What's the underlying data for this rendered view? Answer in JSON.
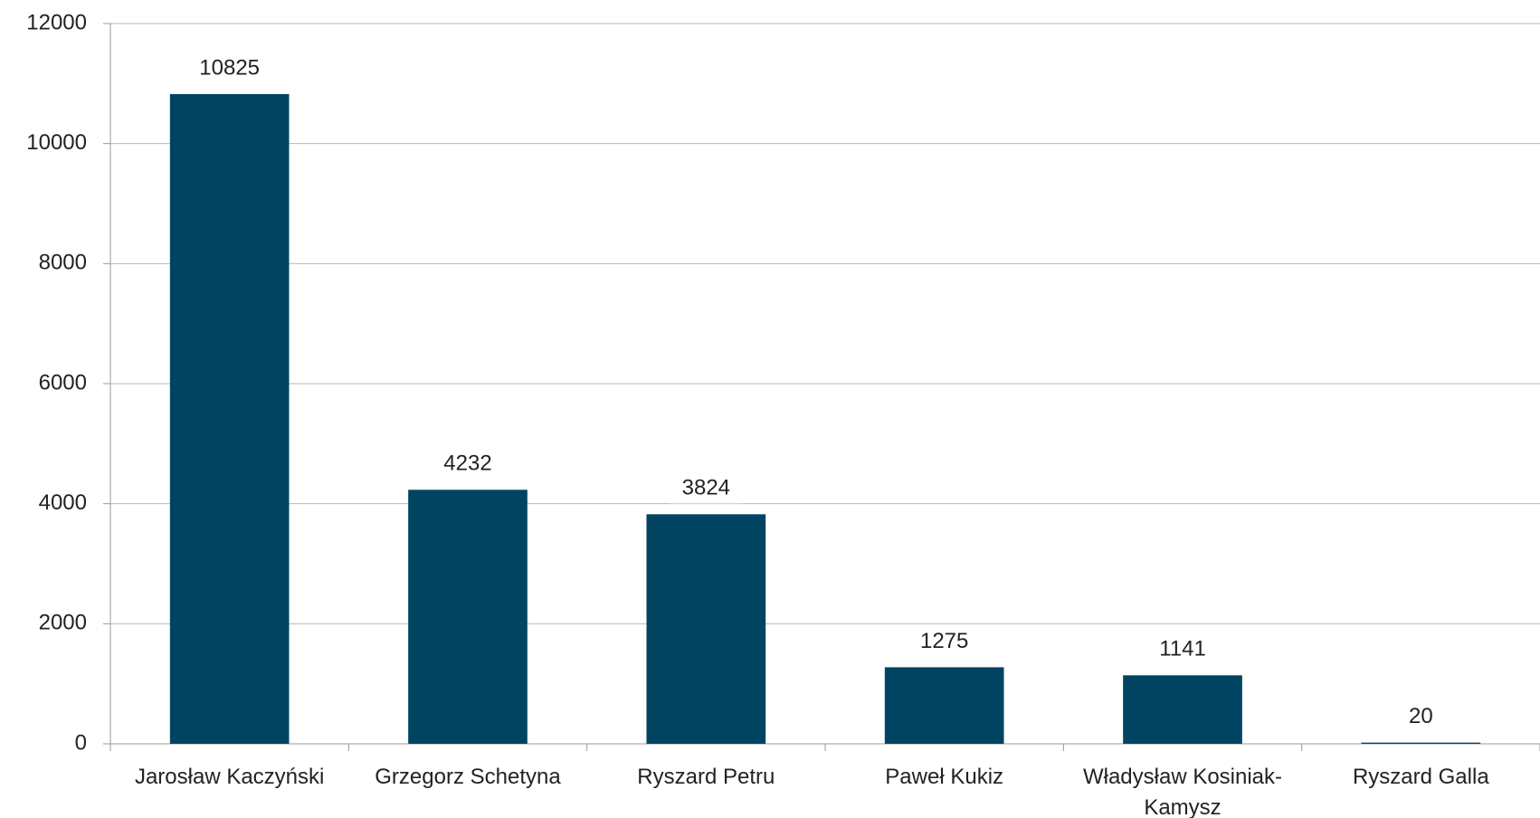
{
  "chart_data": {
    "type": "bar",
    "categories": [
      "Jarosław Kaczyński",
      "Grzegorz Schetyna",
      "Ryszard Petru",
      "Paweł Kukiz",
      "Władysław Kosiniak-Kamysz",
      "Ryszard Galla"
    ],
    "values": [
      10825,
      4232,
      3824,
      1275,
      1141,
      20
    ],
    "color": "#004462",
    "ylim": [
      0,
      12000
    ],
    "yticks": [
      0,
      2000,
      4000,
      6000,
      8000,
      10000,
      12000
    ],
    "grid": true
  }
}
